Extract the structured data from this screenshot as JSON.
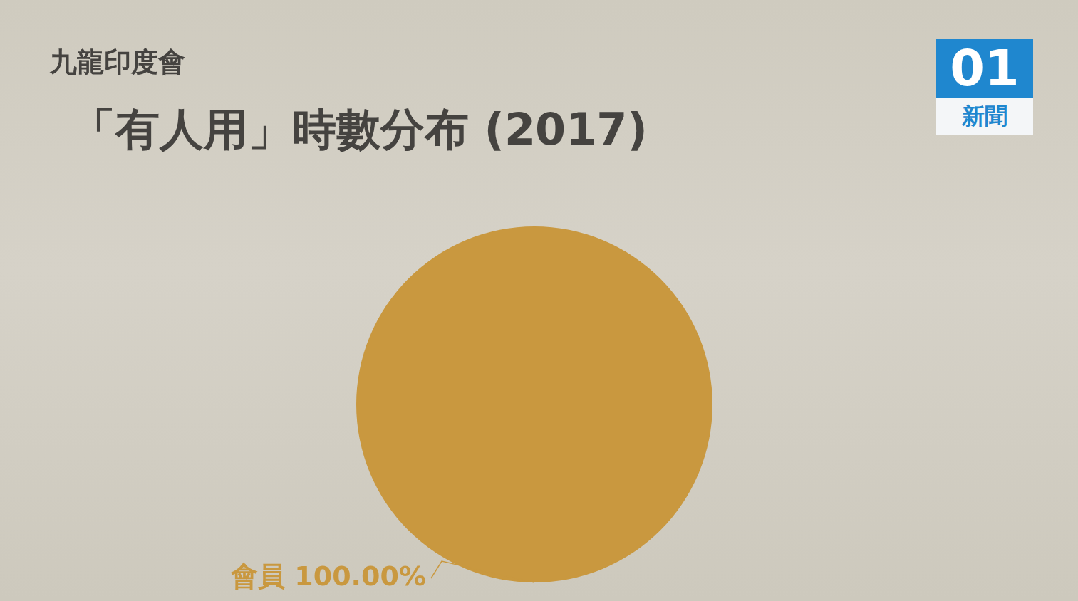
{
  "chart_data": {
    "type": "pie",
    "subtitle": "九龍印度會",
    "title": "「有人用」時數分布 (2017)",
    "annotations": [
      "01",
      "新聞"
    ],
    "categories": [
      "會員"
    ],
    "values": [
      100
    ],
    "value_labels": [
      "100.00%"
    ],
    "color": "#c9983f",
    "data_labels": true
  }
}
